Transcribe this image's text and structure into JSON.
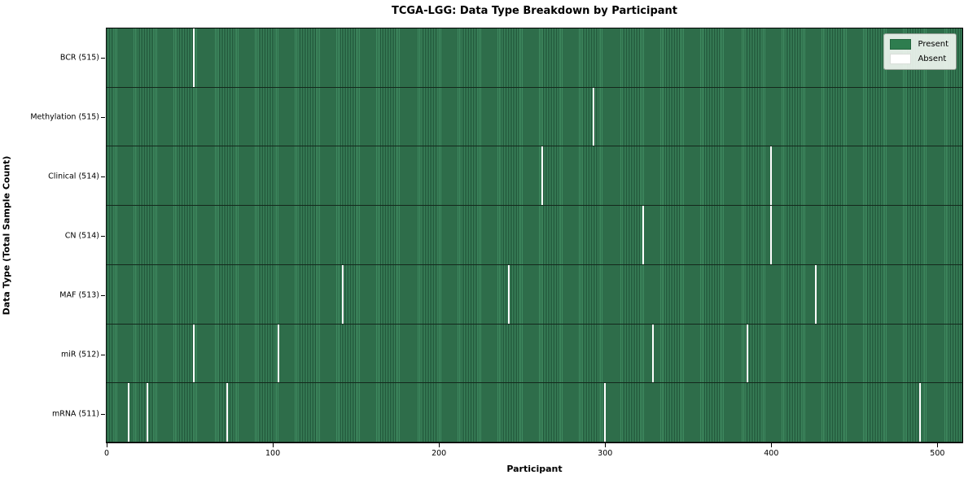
{
  "title": "TCGA-LGG: Data Type Breakdown by Participant",
  "colors": {
    "present": "#2e7d4f",
    "present_stripe_light": "#3f8a60",
    "present_stripe_dark": "#1d5035",
    "absent": "#ffffff",
    "row_divider": "#14281c",
    "legend_bg": "#f3f7f3"
  },
  "legend": {
    "entries": [
      {
        "label": "Present",
        "color": "#2e7d4f"
      },
      {
        "label": "Absent",
        "color": "#ffffff"
      }
    ]
  },
  "chart_data": {
    "type": "heatmap",
    "title": "TCGA-LGG: Data Type Breakdown by Participant",
    "xlabel": "Participant",
    "ylabel": "Data Type (Total Sample Count)",
    "xlim": [
      0,
      516
    ],
    "n_participants": 516,
    "x_ticks": [
      0,
      100,
      200,
      300,
      400,
      500
    ],
    "grid": false,
    "legend_entries": [
      "Present",
      "Absent"
    ],
    "legend_position": "upper right",
    "cell_values": "1 = present (green), 0 = absent (white)",
    "rows": [
      {
        "label": "BCR (515)",
        "data_type": "BCR",
        "present_count": 515,
        "absent_count": 1,
        "absent_participants": [
          52
        ]
      },
      {
        "label": "Methylation (515)",
        "data_type": "Methylation",
        "present_count": 515,
        "absent_count": 1,
        "absent_participants": [
          293
        ]
      },
      {
        "label": "Clinical (514)",
        "data_type": "Clinical",
        "present_count": 514,
        "absent_count": 2,
        "absent_participants": [
          262,
          400
        ]
      },
      {
        "label": "CN (514)",
        "data_type": "CN",
        "present_count": 514,
        "absent_count": 2,
        "absent_participants": [
          323,
          400
        ]
      },
      {
        "label": "MAF (513)",
        "data_type": "MAF",
        "present_count": 513,
        "absent_count": 3,
        "absent_participants": [
          142,
          242,
          427
        ]
      },
      {
        "label": "miR (512)",
        "data_type": "miR",
        "present_count": 512,
        "absent_count": 4,
        "absent_participants": [
          52,
          103,
          329,
          386
        ]
      },
      {
        "label": "mRNA (511)",
        "data_type": "mRNA",
        "present_count": 511,
        "absent_count": 5,
        "absent_participants": [
          13,
          24,
          72,
          300,
          490
        ]
      }
    ]
  }
}
